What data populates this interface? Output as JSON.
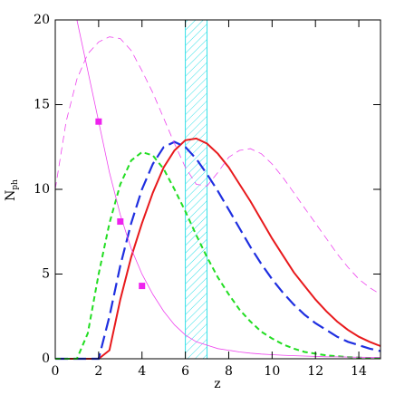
{
  "chart_data": {
    "type": "line",
    "xlabel": "z",
    "ylabel": "N",
    "ylabel_sub": "ph",
    "xlim": [
      0,
      15
    ],
    "ylim": [
      0,
      20
    ],
    "xticks": [
      0,
      2,
      4,
      6,
      8,
      10,
      12,
      14
    ],
    "yticks": [
      0,
      5,
      10,
      15,
      20
    ],
    "band": {
      "x": [
        6,
        7
      ],
      "color": "#33e0e8"
    },
    "x": [
      0,
      0.5,
      1,
      1.5,
      2,
      2.5,
      3,
      3.5,
      4,
      4.5,
      5,
      5.5,
      6,
      6.5,
      7,
      7.5,
      8,
      8.5,
      9,
      9.5,
      10,
      10.5,
      11,
      11.5,
      12,
      12.5,
      13,
      13.5,
      14,
      14.5,
      15
    ],
    "series": [
      {
        "color": "#e8191c",
        "dash": "solid",
        "width": 2,
        "values": [
          0,
          0,
          0,
          0,
          0,
          0.5,
          3.5,
          6,
          8,
          9.8,
          11.3,
          12.3,
          12.9,
          13,
          12.7,
          12.1,
          11.3,
          10.3,
          9.3,
          8.2,
          7.1,
          6.1,
          5.1,
          4.3,
          3.5,
          2.8,
          2.2,
          1.7,
          1.3,
          1,
          0.75
        ]
      },
      {
        "color": "#1f2fe0",
        "dash": "long",
        "width": 2.2,
        "values": [
          0,
          0,
          0,
          0,
          0,
          2.5,
          5.5,
          8,
          10,
          11.5,
          12.5,
          12.8,
          12.5,
          11.8,
          10.9,
          9.9,
          8.8,
          7.7,
          6.6,
          5.6,
          4.7,
          3.9,
          3.2,
          2.6,
          2.1,
          1.7,
          1.3,
          1,
          0.8,
          0.6,
          0.45
        ]
      },
      {
        "color": "#22dd22",
        "dash": "short",
        "width": 2,
        "values": [
          0,
          0,
          0,
          1.5,
          5,
          8,
          10.3,
          11.7,
          12.2,
          12,
          11.2,
          10,
          8.7,
          7.3,
          6,
          4.8,
          3.8,
          2.9,
          2.2,
          1.6,
          1.2,
          0.85,
          0.6,
          0.4,
          0.3,
          0.2,
          0.15,
          0.1,
          0.07,
          0.05,
          0.03
        ]
      },
      {
        "color": "#ee44ee",
        "dash": "solid",
        "width": 0.8,
        "values": [
          null,
          null,
          20,
          17,
          14,
          11,
          8.5,
          6.5,
          5,
          3.8,
          2.8,
          2,
          1.4,
          1,
          0.8,
          0.6,
          0.5,
          0.4,
          0.33,
          0.28,
          0.24,
          0.21,
          0.18,
          0.16,
          0.14,
          0.12,
          0.11,
          0.1,
          0.09,
          0.085,
          0.08
        ]
      },
      {
        "color": "#ee44ee",
        "dash": "medium",
        "width": 0.8,
        "values": [
          10,
          14,
          16.5,
          18,
          18.7,
          19,
          18.9,
          18.2,
          17,
          15.7,
          14.2,
          12.7,
          11.3,
          10.3,
          10.2,
          11,
          11.9,
          12.3,
          12.4,
          12.1,
          11.5,
          10.7,
          9.8,
          8.9,
          8,
          7.1,
          6.2,
          5.4,
          4.7,
          4.2,
          3.8
        ]
      }
    ],
    "points": {
      "color": "#ee22ee",
      "x": [
        2,
        3,
        4
      ],
      "values": [
        14,
        8.1,
        4.3
      ]
    }
  }
}
